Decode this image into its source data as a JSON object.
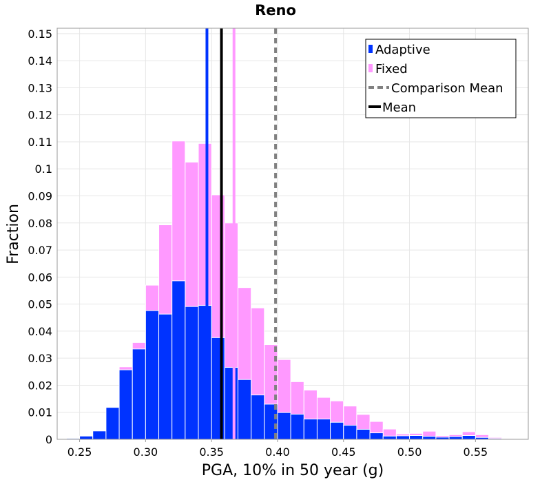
{
  "chart_data": {
    "type": "bar",
    "title": "Reno",
    "xlabel": "PGA, 10% in 50 year (g)",
    "ylabel": "Fraction",
    "xlim": [
      0.233,
      0.59
    ],
    "ylim": [
      0,
      0.152
    ],
    "bin_width": 0.01,
    "x_ticks": [
      "0.25",
      "0.30",
      "0.35",
      "0.40",
      "0.45",
      "0.50",
      "0.55"
    ],
    "x_tick_values": [
      0.25,
      0.3,
      0.35,
      0.4,
      0.45,
      0.5,
      0.55
    ],
    "y_ticks": [
      "0",
      "0.01",
      "0.02",
      "0.03",
      "0.04",
      "0.05",
      "0.06",
      "0.07",
      "0.08",
      "0.09",
      "0.1",
      "0.11",
      "0.12",
      "0.13",
      "0.14",
      "0.15"
    ],
    "y_tick_values": [
      0,
      0.01,
      0.02,
      0.03,
      0.04,
      0.05,
      0.06,
      0.07,
      0.08,
      0.09,
      0.1,
      0.11,
      0.12,
      0.13,
      0.14,
      0.15
    ],
    "grid": true,
    "legend_position": "top-right",
    "series": [
      {
        "name": "Adaptive",
        "color": "#0033ff",
        "kind": "histogram",
        "bin_starts": [
          0.24,
          0.25,
          0.26,
          0.27,
          0.28,
          0.29,
          0.3,
          0.31,
          0.32,
          0.33,
          0.34,
          0.35,
          0.36,
          0.37,
          0.38,
          0.39,
          0.4,
          0.41,
          0.42,
          0.43,
          0.44,
          0.45,
          0.46,
          0.47,
          0.48,
          0.49,
          0.5,
          0.51,
          0.52,
          0.53,
          0.54,
          0.55,
          0.56,
          0.57
        ],
        "values": [
          0.0003,
          0.0012,
          0.0031,
          0.0118,
          0.0257,
          0.0334,
          0.0476,
          0.0463,
          0.0586,
          0.0491,
          0.0495,
          0.0376,
          0.0266,
          0.0221,
          0.0164,
          0.013,
          0.0099,
          0.0093,
          0.0075,
          0.0075,
          0.0063,
          0.0052,
          0.0037,
          0.0024,
          0.0012,
          0.0013,
          0.0014,
          0.0011,
          0.0008,
          0.001,
          0.0014,
          0.0007,
          0.0003,
          0.0001
        ]
      },
      {
        "name": "Fixed",
        "color": "#ff99ff",
        "kind": "histogram",
        "bin_starts": [
          0.24,
          0.25,
          0.26,
          0.27,
          0.28,
          0.29,
          0.3,
          0.31,
          0.32,
          0.33,
          0.34,
          0.35,
          0.36,
          0.37,
          0.38,
          0.39,
          0.4,
          0.41,
          0.42,
          0.43,
          0.44,
          0.45,
          0.46,
          0.47,
          0.48,
          0.49,
          0.5,
          0.51,
          0.52,
          0.53,
          0.54,
          0.55,
          0.56,
          0.57
        ],
        "values": [
          0.0003,
          0.0012,
          0.0031,
          0.0118,
          0.0268,
          0.0358,
          0.057,
          0.0793,
          0.1103,
          0.1025,
          0.1094,
          0.0904,
          0.08,
          0.0561,
          0.0486,
          0.035,
          0.0295,
          0.0213,
          0.0182,
          0.0155,
          0.0142,
          0.0123,
          0.0092,
          0.0066,
          0.0038,
          0.002,
          0.0022,
          0.003,
          0.0014,
          0.0017,
          0.0028,
          0.0017,
          0.0007,
          0.0003
        ]
      },
      {
        "name": "Comparison Mean",
        "color": "#808080",
        "kind": "vline",
        "x": 0.3985
      },
      {
        "name": "Mean",
        "color": "#000000",
        "kind": "vline",
        "x": 0.3575
      },
      {
        "name": "Adaptive Mean",
        "color": "#0033ff",
        "kind": "vline",
        "x": 0.3465
      },
      {
        "name": "Fixed Mean",
        "color": "#ff99ff",
        "kind": "vline",
        "x": 0.367
      }
    ],
    "legend": [
      {
        "label": "Adaptive",
        "color": "#0033ff",
        "style": "block"
      },
      {
        "label": "Fixed",
        "color": "#ff99ff",
        "style": "block"
      },
      {
        "label": "Comparison Mean",
        "color": "#808080",
        "style": "dashed"
      },
      {
        "label": "Mean",
        "color": "#000000",
        "style": "solid"
      }
    ]
  }
}
